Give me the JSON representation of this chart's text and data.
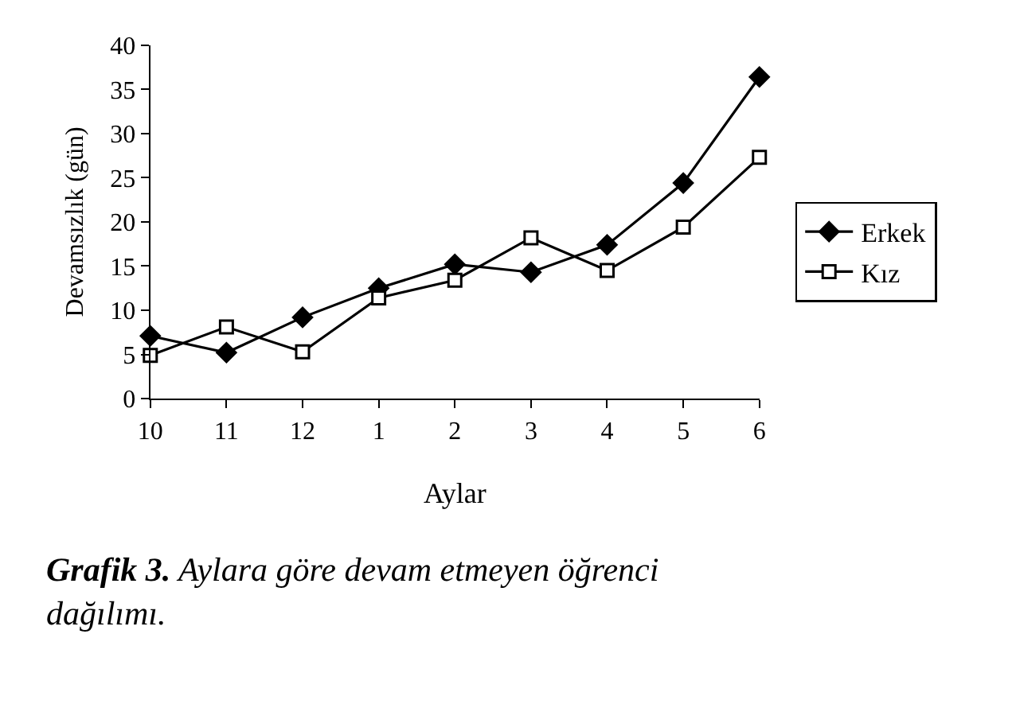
{
  "chart_data": {
    "type": "line",
    "xlabel": "Aylar",
    "ylabel": "Devamsızlık (gün)",
    "categories": [
      "10",
      "11",
      "12",
      "1",
      "2",
      "3",
      "4",
      "5",
      "6"
    ],
    "series": [
      {
        "name": "Erkek",
        "color": "#000000",
        "marker": "diamond",
        "values": [
          7.1,
          5.2,
          9.2,
          12.5,
          15.2,
          14.3,
          17.4,
          24.4,
          36.4
        ]
      },
      {
        "name": "Kız",
        "color": "#000000",
        "marker": "square",
        "values": [
          4.9,
          8.1,
          5.3,
          11.4,
          13.4,
          18.2,
          14.5,
          19.4,
          27.3
        ]
      }
    ],
    "ylim": [
      0,
      40
    ],
    "yticks": [
      0,
      5,
      10,
      15,
      20,
      25,
      30,
      35,
      40
    ],
    "legend": "right",
    "line_style": "solid",
    "annotations": [
      "Grafik 3. Aylara göre devam etmeyen öğrenci dağılımı."
    ]
  }
}
